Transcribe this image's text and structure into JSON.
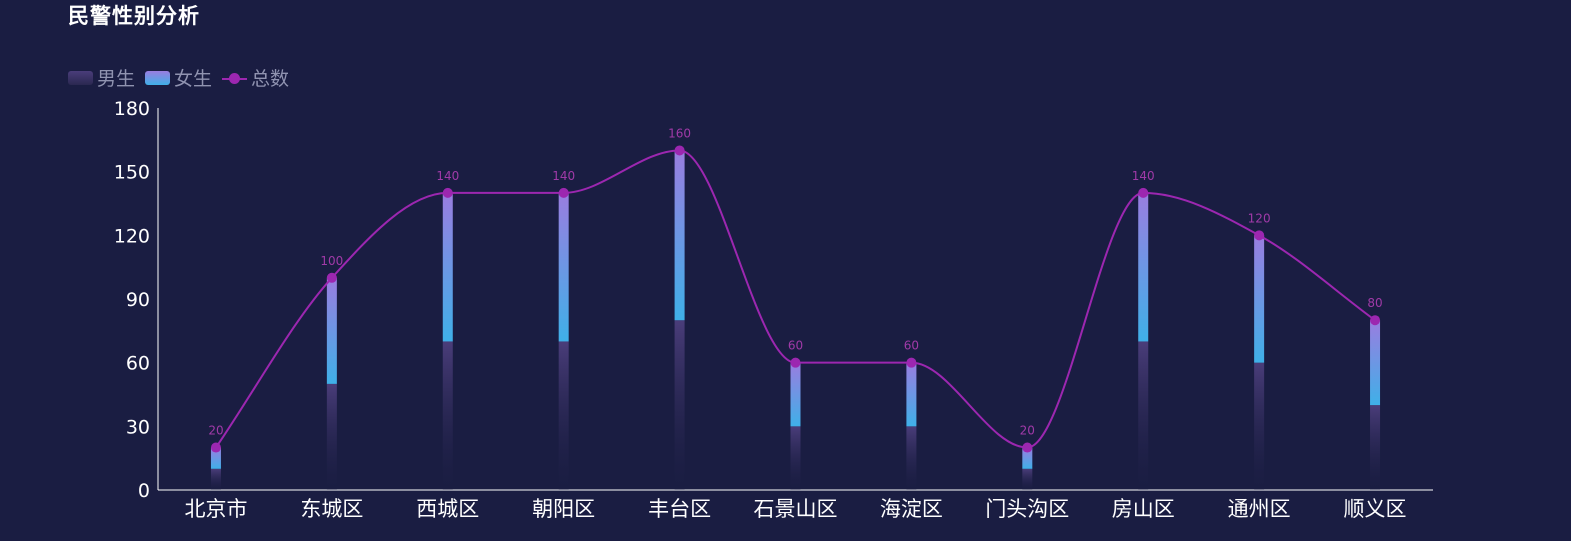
{
  "chart_data": {
    "type": "bar",
    "title": "民警性别分析",
    "xlabel": "",
    "ylabel": "",
    "ylim": [
      0,
      180
    ],
    "yticks": [
      0,
      30,
      60,
      90,
      120,
      150,
      180
    ],
    "grid": false,
    "legend_position": "top-left",
    "categories": [
      "北京市",
      "东城区",
      "西城区",
      "朝阳区",
      "丰台区",
      "石景山区",
      "海淀区",
      "门头沟区",
      "房山区",
      "通州区",
      "顺义区"
    ],
    "series": [
      {
        "name": "男生",
        "type": "bar",
        "stacked": true,
        "values": [
          10,
          50,
          70,
          70,
          80,
          30,
          30,
          10,
          70,
          60,
          40
        ]
      },
      {
        "name": "女生",
        "type": "bar",
        "stacked": true,
        "values": [
          10,
          50,
          70,
          70,
          80,
          30,
          30,
          10,
          70,
          60,
          40
        ]
      },
      {
        "name": "总数",
        "type": "line",
        "smooth": true,
        "values": [
          20,
          100,
          140,
          140,
          160,
          60,
          60,
          20,
          140,
          120,
          80
        ]
      }
    ],
    "colors": {
      "background": "#1a1d42",
      "male_top": "#4a3d7a",
      "male_bottom": "#1a1d42",
      "female_top": "#9a7de0",
      "female_bottom": "#3fb0e8",
      "line": "#9c27b0",
      "axis": "#ffffff"
    }
  }
}
